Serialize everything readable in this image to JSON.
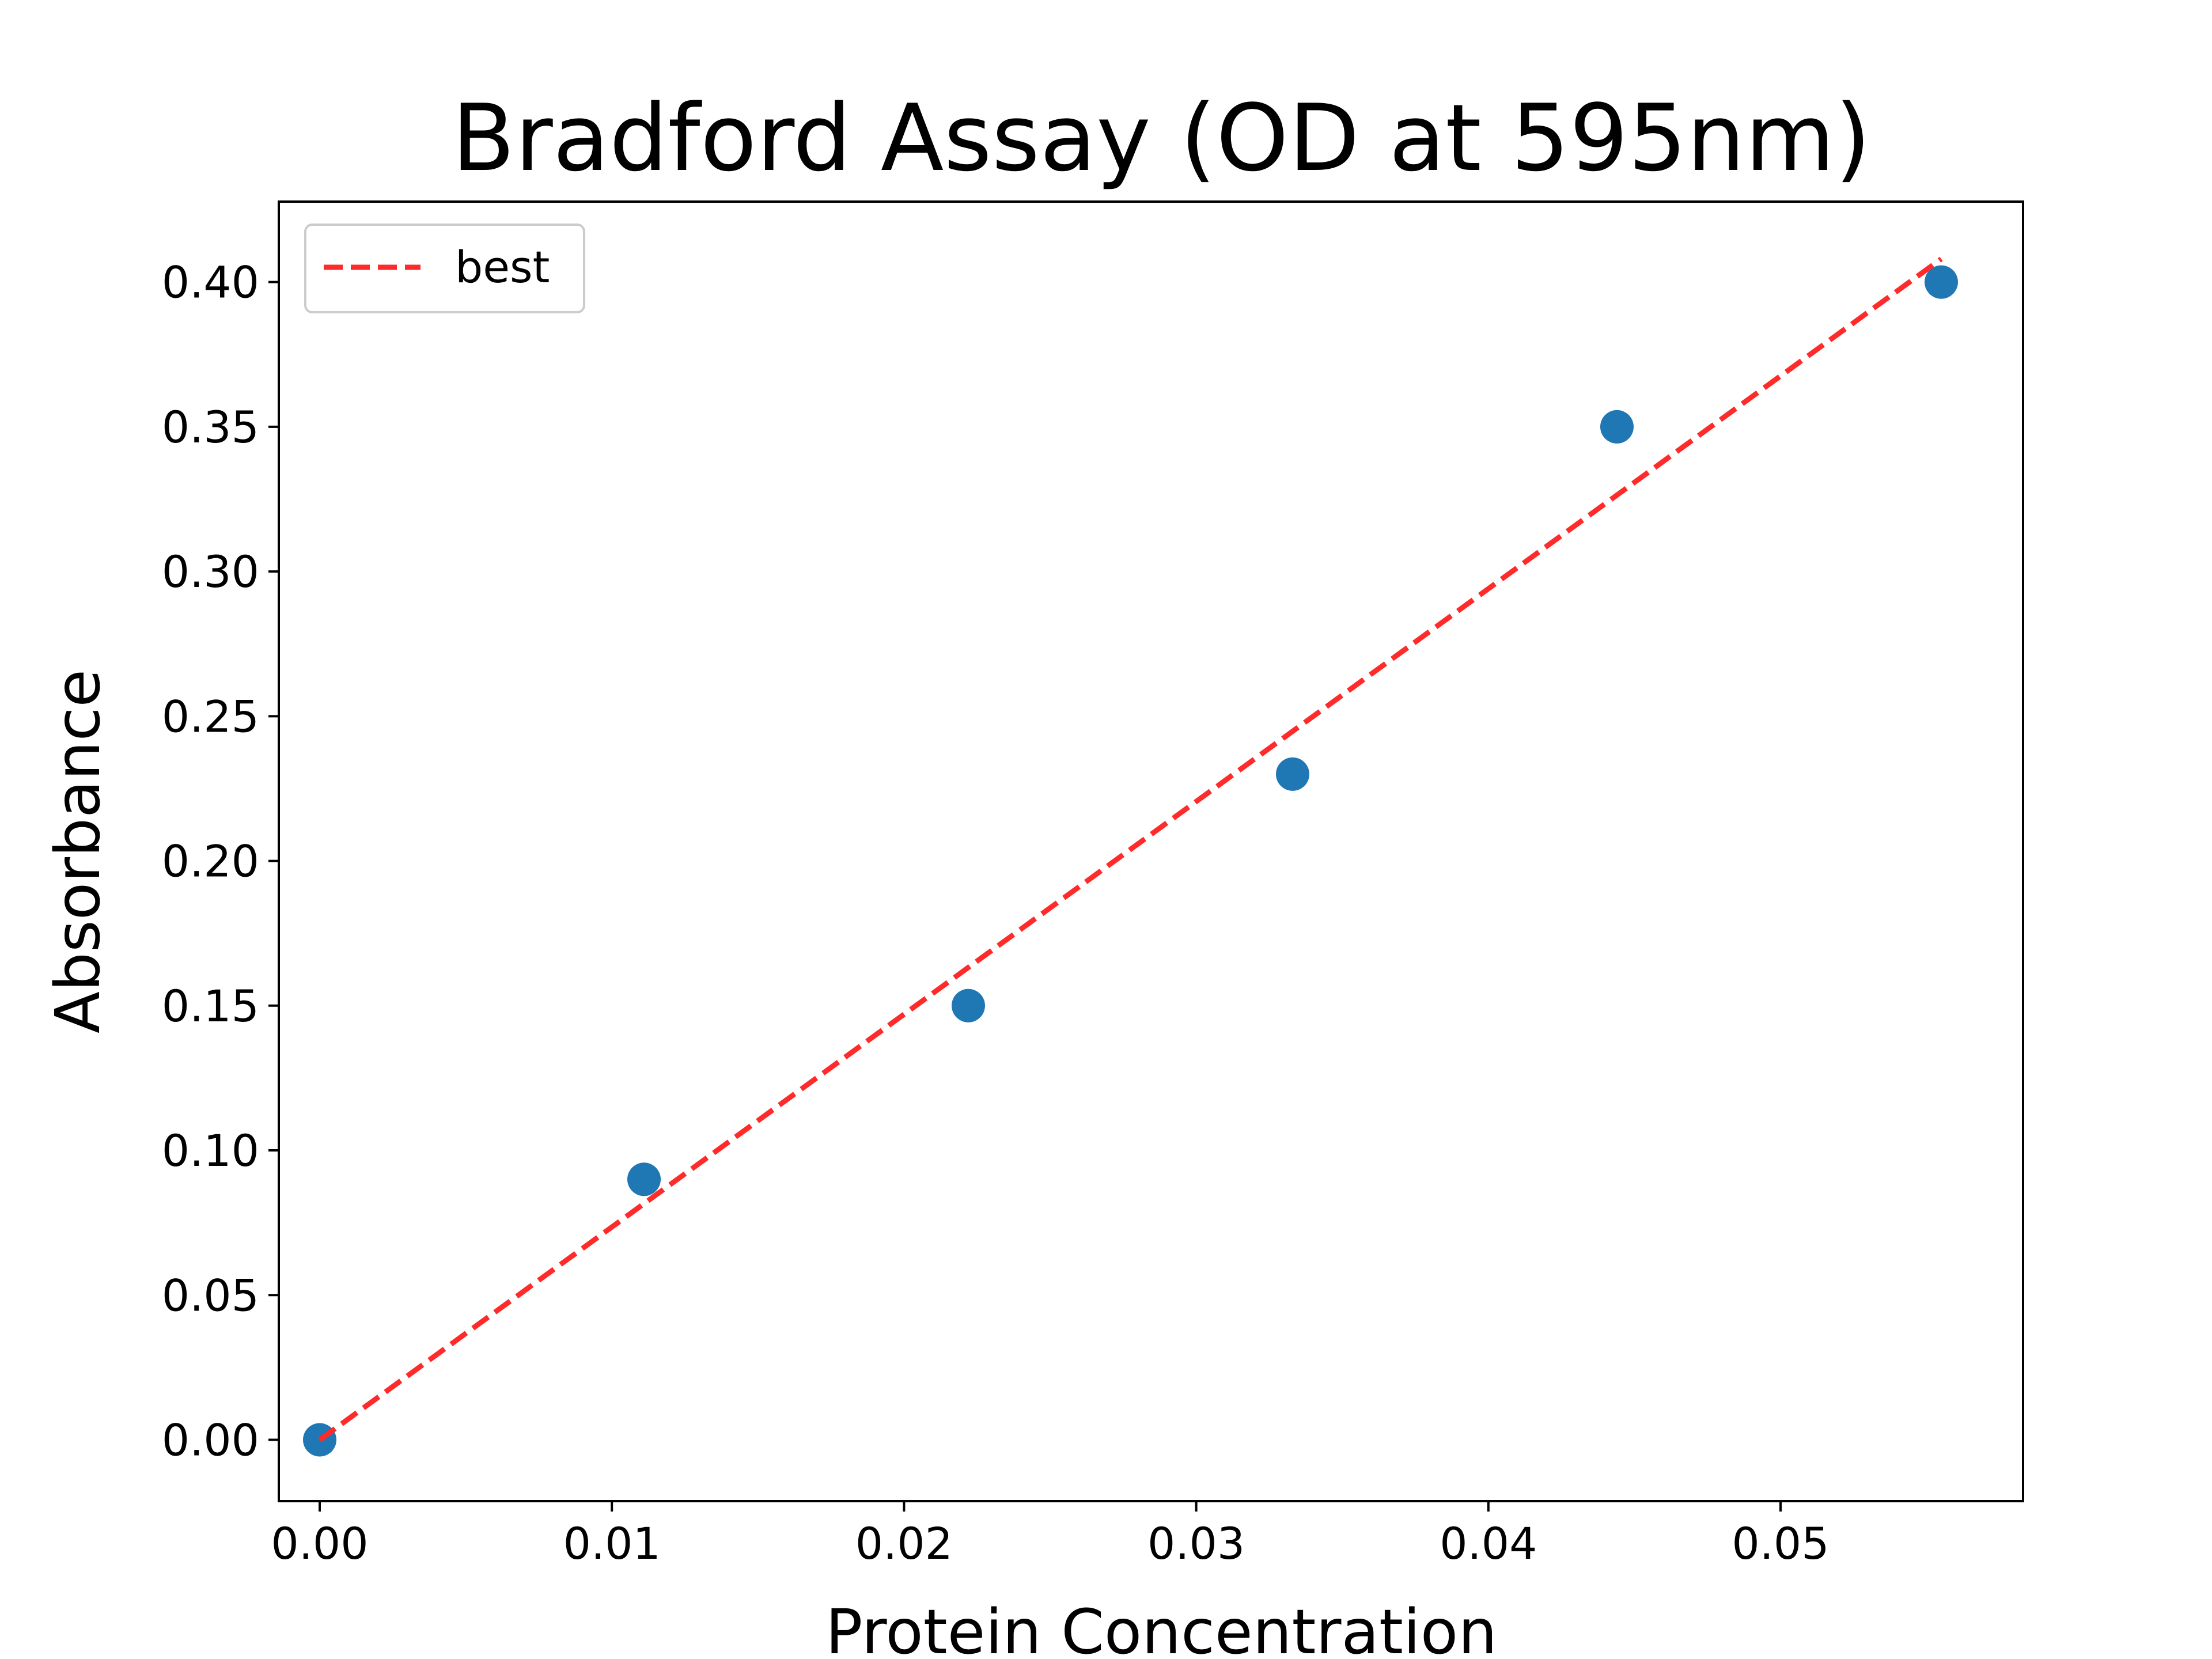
{
  "chart_data": {
    "type": "scatter",
    "title": "Bradford Assay (OD at 595nm)",
    "xlabel": "Protein Concentration",
    "ylabel": "Absorbance",
    "xlim": [
      -0.0014,
      0.0583
    ],
    "ylim": [
      -0.0212,
      0.4278
    ],
    "x_ticks": [
      {
        "value": 0.0,
        "label": "0.00"
      },
      {
        "value": 0.01,
        "label": "0.01"
      },
      {
        "value": 0.02,
        "label": "0.02"
      },
      {
        "value": 0.03,
        "label": "0.03"
      },
      {
        "value": 0.04,
        "label": "0.04"
      },
      {
        "value": 0.05,
        "label": "0.05"
      }
    ],
    "y_ticks": [
      {
        "value": 0.0,
        "label": "0.00"
      },
      {
        "value": 0.05,
        "label": "0.05"
      },
      {
        "value": 0.1,
        "label": "0.10"
      },
      {
        "value": 0.15,
        "label": "0.15"
      },
      {
        "value": 0.2,
        "label": "0.20"
      },
      {
        "value": 0.25,
        "label": "0.25"
      },
      {
        "value": 0.3,
        "label": "0.30"
      },
      {
        "value": 0.35,
        "label": "0.35"
      },
      {
        "value": 0.4,
        "label": "0.40"
      }
    ],
    "grid": false,
    "legend": {
      "placement": "top-left",
      "entries": [
        "best"
      ]
    },
    "series": [
      {
        "kind": "scatter",
        "color": "#1f77b4",
        "x": [
          0.0,
          0.0111,
          0.0222,
          0.0333,
          0.0444,
          0.0555
        ],
        "y": [
          0.0,
          0.09,
          0.15,
          0.23,
          0.35,
          0.4
        ]
      },
      {
        "kind": "line",
        "name": "best",
        "color": "#ff2a2a",
        "style": "dashed",
        "x": [
          0.0,
          0.0555
        ],
        "y": [
          0.0,
          0.408
        ]
      }
    ]
  }
}
